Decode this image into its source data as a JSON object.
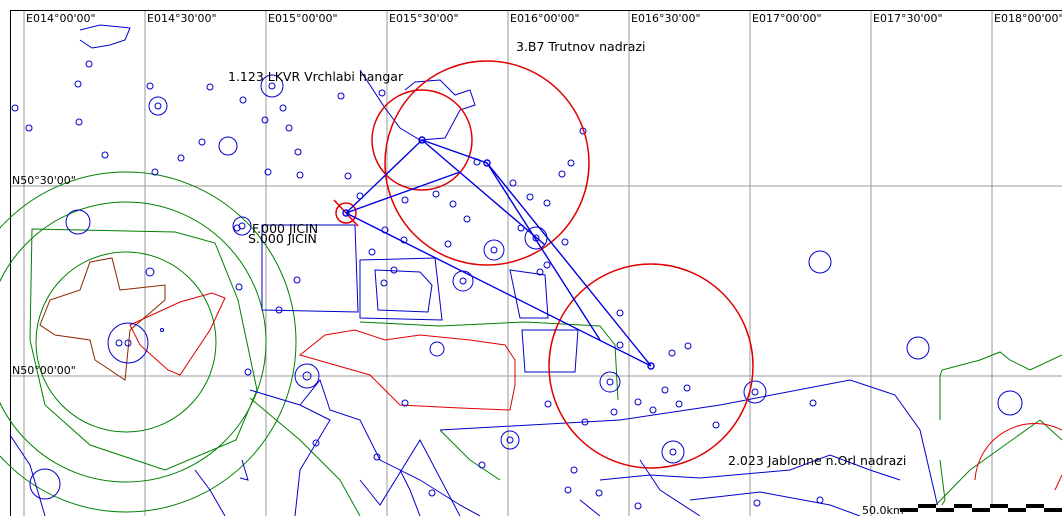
{
  "map": {
    "longitude_labels": [
      "E014°00'00\"",
      "E014°30'00\"",
      "E015°00'00\"",
      "E015°30'00\"",
      "E016°00'00\"",
      "E016°30'00\"",
      "E017°00'00\"",
      "E017°30'00\"",
      "E018°00'00\""
    ],
    "latitude_labels": [
      "N50°30'00\"",
      "N50°00'00\""
    ],
    "turnpoints": [
      {
        "label": "1.123 LKVR Vrchlabi hangar"
      },
      {
        "label": "3.B7 Trutnov nadrazi"
      },
      {
        "label": "F.000 JICIN"
      },
      {
        "label": "S.000 JICIN"
      },
      {
        "label": "2.023 Jablonne n.Orl nadrazi"
      }
    ],
    "scale_bar_label": "50.0km",
    "colors": {
      "task": "#0000e0",
      "sector": "#e00000",
      "airspace_blue": "#0000cc",
      "airspace_green": "#008000",
      "airspace_red": "#e00000",
      "airspace_brown": "#8b2500",
      "grid": "#9a9a9a"
    }
  }
}
